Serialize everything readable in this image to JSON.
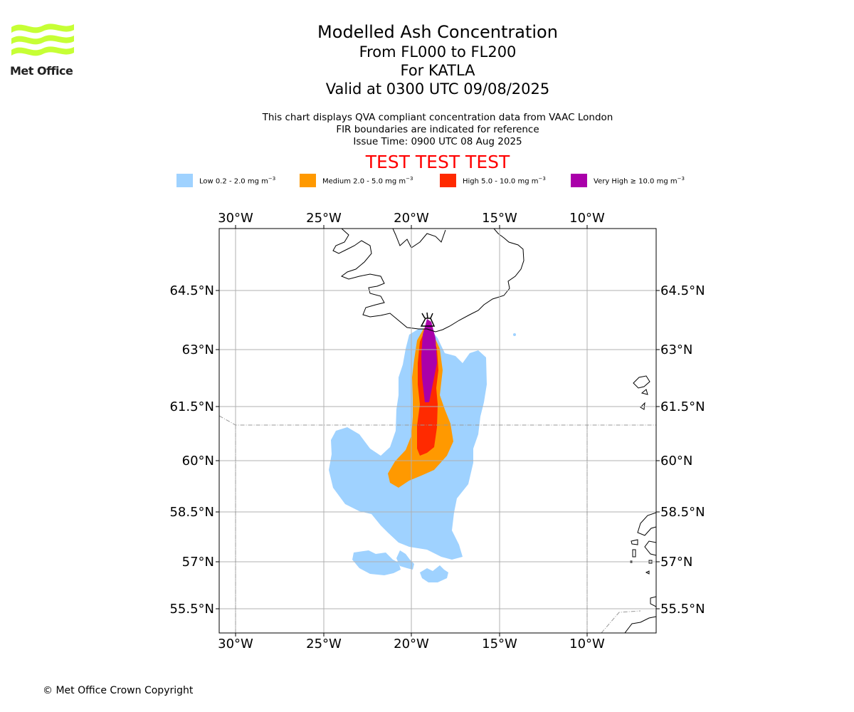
{
  "header": {
    "logo_text": "Met Office",
    "title": "Modelled Ash Concentration",
    "levels": "From FL000 to FL200",
    "volcano": "For KATLA",
    "valid": "Valid at 0300 UTC 09/08/2025"
  },
  "notes": {
    "line1": "This chart displays QVA compliant concentration data from VAAC London",
    "line2": "FIR boundaries are indicated for reference",
    "line3": "Issue Time: 0900 UTC 08 Aug 2025"
  },
  "banner": "TEST TEST TEST",
  "legend": [
    {
      "label": "Low 0.2 - 2.0 mg m",
      "unit_sup": "−3",
      "color": "#9fd2ff"
    },
    {
      "label": "Medium 2.0 - 5.0 mg m",
      "unit_sup": "−3",
      "color": "#ff9900"
    },
    {
      "label": "High 5.0 - 10.0 mg m",
      "unit_sup": "−3",
      "color": "#ff2a00"
    },
    {
      "label": "Very High  ≥  10.0 mg m",
      "unit_sup": "−3",
      "color": "#aa00aa"
    }
  ],
  "map": {
    "lon_labels": [
      "30°W",
      "25°W",
      "20°W",
      "15°W",
      "10°W"
    ],
    "lat_labels": [
      "64.5°N",
      "63°N",
      "61.5°N",
      "60°N",
      "58.5°N",
      "57°N",
      "55.5°N"
    ]
  },
  "footer": {
    "copyright": "© Met Office Crown Copyright"
  }
}
